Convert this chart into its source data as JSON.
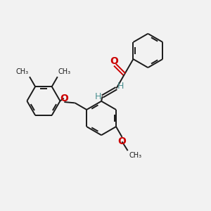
{
  "background_color": "#f2f2f2",
  "bond_color": "#1a1a1a",
  "oxygen_color": "#cc0000",
  "vinyl_h_color": "#4a9090",
  "bond_width": 1.4,
  "dbo": 0.055,
  "figsize": [
    3.0,
    3.0
  ],
  "dpi": 100,
  "xlim": [
    0,
    10
  ],
  "ylim": [
    0,
    10
  ]
}
